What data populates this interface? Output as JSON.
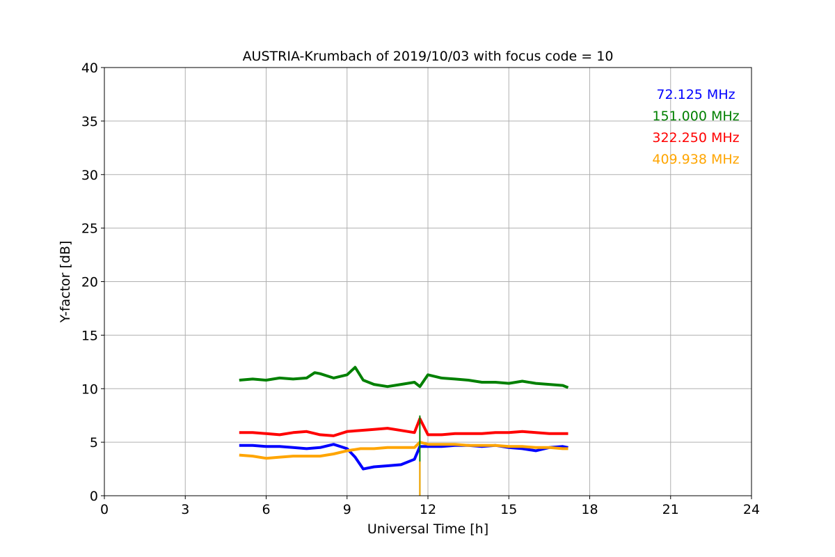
{
  "chart_data": {
    "type": "line",
    "title": "AUSTRIA-Krumbach of 2019/10/03 with focus code = 10",
    "xlabel": "Universal Time [h]",
    "ylabel": "Y-factor [dB]",
    "xlim": [
      0,
      24
    ],
    "ylim": [
      0,
      40
    ],
    "xticks": [
      "0",
      "3",
      "6",
      "9",
      "12",
      "15",
      "18",
      "21",
      "24"
    ],
    "yticks": [
      "0",
      "5",
      "10",
      "15",
      "20",
      "25",
      "30",
      "35",
      "40"
    ],
    "grid": true,
    "legend_position": "top-right",
    "series": [
      {
        "name": "72.125 MHz",
        "color": "#0000ff",
        "x": [
          5.0,
          5.5,
          6.0,
          6.5,
          7.0,
          7.5,
          8.0,
          8.5,
          9.0,
          9.3,
          9.6,
          10.0,
          10.5,
          11.0,
          11.5,
          11.7,
          12.0,
          12.5,
          13.0,
          13.5,
          14.0,
          14.5,
          15.0,
          15.5,
          16.0,
          16.5,
          17.0,
          17.2
        ],
        "y": [
          4.7,
          4.7,
          4.6,
          4.6,
          4.5,
          4.4,
          4.5,
          4.8,
          4.4,
          3.6,
          2.5,
          2.7,
          2.8,
          2.9,
          3.4,
          4.6,
          4.6,
          4.6,
          4.7,
          4.7,
          4.6,
          4.7,
          4.5,
          4.4,
          4.2,
          4.5,
          4.6,
          4.5
        ]
      },
      {
        "name": "151.000 MHz",
        "color": "#008000",
        "x": [
          5.0,
          5.5,
          6.0,
          6.5,
          7.0,
          7.5,
          7.8,
          8.0,
          8.5,
          9.0,
          9.3,
          9.6,
          10.0,
          10.5,
          11.0,
          11.5,
          11.7,
          12.0,
          12.5,
          13.0,
          13.5,
          14.0,
          14.5,
          15.0,
          15.5,
          16.0,
          16.5,
          17.0,
          17.2
        ],
        "y": [
          10.8,
          10.9,
          10.8,
          11.0,
          10.9,
          11.0,
          11.5,
          11.4,
          11.0,
          11.3,
          12.0,
          10.8,
          10.4,
          10.2,
          10.4,
          10.6,
          10.2,
          11.3,
          11.0,
          10.9,
          10.8,
          10.6,
          10.6,
          10.5,
          10.7,
          10.5,
          10.4,
          10.3,
          10.1
        ]
      },
      {
        "name": "322.250 MHz",
        "color": "#ff0000",
        "x": [
          5.0,
          5.5,
          6.0,
          6.5,
          7.0,
          7.5,
          8.0,
          8.5,
          9.0,
          9.5,
          10.0,
          10.5,
          11.0,
          11.5,
          11.7,
          12.0,
          12.5,
          13.0,
          13.5,
          14.0,
          14.5,
          15.0,
          15.5,
          16.0,
          16.5,
          17.0,
          17.2
        ],
        "y": [
          5.9,
          5.9,
          5.8,
          5.7,
          5.9,
          6.0,
          5.7,
          5.6,
          6.0,
          6.1,
          6.2,
          6.3,
          6.1,
          5.9,
          7.2,
          5.7,
          5.7,
          5.8,
          5.8,
          5.8,
          5.9,
          5.9,
          6.0,
          5.9,
          5.8,
          5.8,
          5.8
        ]
      },
      {
        "name": "409.938 MHz",
        "color": "#ffa500",
        "x": [
          5.0,
          5.5,
          6.0,
          6.5,
          7.0,
          7.5,
          8.0,
          8.5,
          9.0,
          9.5,
          10.0,
          10.5,
          11.0,
          11.5,
          11.7,
          12.0,
          12.5,
          13.0,
          13.5,
          14.0,
          14.5,
          15.0,
          15.5,
          16.0,
          16.5,
          17.0,
          17.2
        ],
        "y": [
          3.8,
          3.7,
          3.5,
          3.6,
          3.7,
          3.7,
          3.7,
          3.9,
          4.2,
          4.4,
          4.4,
          4.5,
          4.5,
          4.5,
          5.0,
          4.8,
          4.8,
          4.8,
          4.7,
          4.7,
          4.7,
          4.6,
          4.6,
          4.5,
          4.5,
          4.4,
          4.4
        ]
      }
    ],
    "annotations": [
      {
        "series": "151.000 MHz",
        "x": 11.7,
        "y_from": 7.5,
        "y_to": 0.0
      },
      {
        "series": "409.938 MHz",
        "x": 11.7,
        "y_from": 3.2,
        "y_to": 0.0
      }
    ]
  }
}
